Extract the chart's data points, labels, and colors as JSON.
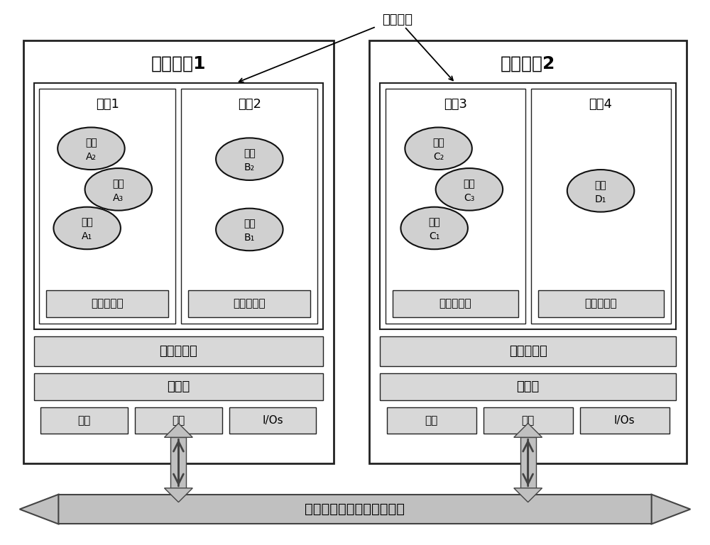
{
  "bg_color": "#ffffff",
  "node_border": "#222222",
  "box_bg": "#d8d8d8",
  "box_border": "#222222",
  "ellipse_bg": "#d0d0d0",
  "ellipse_border": "#111111",
  "font_color": "#000000",
  "node1_title": "处理节点1",
  "node2_title": "处理节点2",
  "partition1_title": "分区1",
  "partition2_title": "分区2",
  "partition3_title": "分区3",
  "partition4_title": "分区4",
  "syscall_label": "系统分区",
  "global_sched": "全局调度器",
  "processor": "处理器",
  "memory": "内存",
  "network": "网卡",
  "ios": "I/Os",
  "local_sched": "本地调度器",
  "bus_label": "航空电子高速数据总线网络",
  "figsize": [
    10.0,
    7.68
  ],
  "dpi": 100
}
